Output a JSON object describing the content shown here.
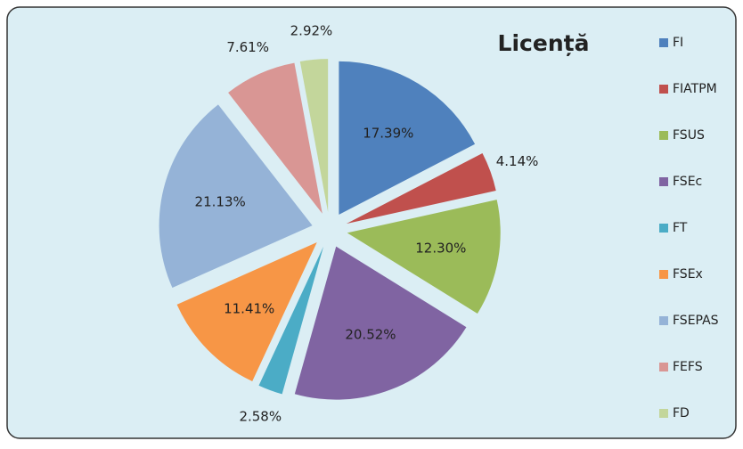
{
  "chart_data": {
    "type": "pie",
    "title": "Licență",
    "categories": [
      "FI",
      "FIATPM",
      "FSUS",
      "FSEc",
      "FT",
      "FSEx",
      "FSEPAS",
      "FEFS",
      "FD"
    ],
    "values": [
      17.39,
      4.14,
      12.3,
      20.52,
      2.58,
      11.41,
      21.13,
      7.61,
      2.92
    ],
    "value_labels": [
      "17.39%",
      "4.14%",
      "12.30%",
      "20.52%",
      "2.58%",
      "11.41%",
      "21.13%",
      "7.61%",
      "2.92%"
    ],
    "colors": [
      "#4f81bd",
      "#c0504d",
      "#9bbb59",
      "#8064a2",
      "#4bacc6",
      "#f79646",
      "#95b3d7",
      "#d99694",
      "#c3d69b"
    ],
    "exploded": true,
    "legend": "right"
  }
}
